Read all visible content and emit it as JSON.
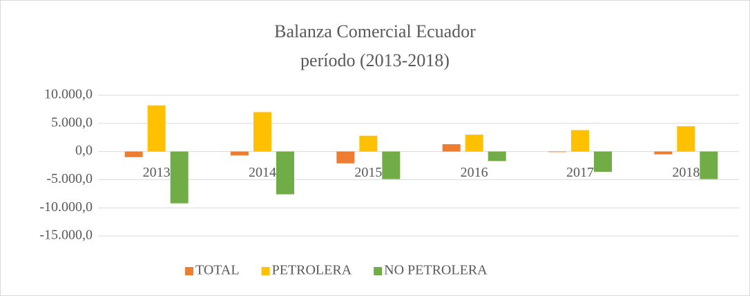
{
  "chart_data": {
    "type": "bar",
    "title": "Balanza Comercial Ecuador",
    "subtitle": "período (2013-2018)",
    "categories": [
      "2013",
      "2014",
      "2015",
      "2016",
      "2017",
      "2018"
    ],
    "series": [
      {
        "name": "TOTAL",
        "color": "#ed7d31",
        "values": [
          -1000,
          -700,
          -2100,
          1300,
          -100,
          -500
        ]
      },
      {
        "name": "PETROLERA",
        "color": "#ffc000",
        "values": [
          8200,
          7000,
          2800,
          3000,
          3800,
          4500
        ]
      },
      {
        "name": "NO PETROLERA",
        "color": "#70ad47",
        "values": [
          -9200,
          -7600,
          -4900,
          -1700,
          -3600,
          -4900
        ]
      }
    ],
    "ylim": [
      -15000,
      10000
    ],
    "yticks": [
      {
        "value": -15000,
        "label": "-15.000,0"
      },
      {
        "value": -10000,
        "label": "-10.000,0"
      },
      {
        "value": -5000,
        "label": "-5.000,0"
      },
      {
        "value": 0,
        "label": "0,0"
      },
      {
        "value": 5000,
        "label": "5.000,0"
      },
      {
        "value": 10000,
        "label": "10.000,0"
      }
    ],
    "grid": true,
    "legend": "bottom"
  }
}
